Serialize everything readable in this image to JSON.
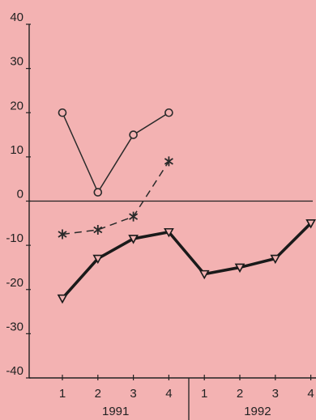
{
  "chart_data": {
    "type": "line",
    "ylim": [
      -40,
      40
    ],
    "yticks": [
      40,
      30,
      20,
      10,
      0,
      -10,
      -20,
      -30,
      -40
    ],
    "x_tick_labels": [
      "1",
      "2",
      "3",
      "4",
      "1",
      "2",
      "3",
      "4"
    ],
    "groups": [
      "1991",
      "1992"
    ],
    "grid": false,
    "legend": "none",
    "series": [
      {
        "marker": "circle",
        "line": "thin-solid",
        "color": "#2a2a2a",
        "values": [
          20,
          2,
          15,
          20,
          null,
          null,
          null,
          null
        ]
      },
      {
        "marker": "asterisk",
        "line": "dashed",
        "color": "#2a2a2a",
        "values": [
          -7.5,
          -6.5,
          -3.5,
          9,
          null,
          null,
          null,
          null
        ]
      },
      {
        "marker": "triangle-down",
        "line": "thick-solid",
        "color": "#1a1a1a",
        "values": [
          -22,
          -13,
          -8.5,
          -7,
          -16.5,
          -15,
          -13,
          -5
        ]
      }
    ]
  }
}
